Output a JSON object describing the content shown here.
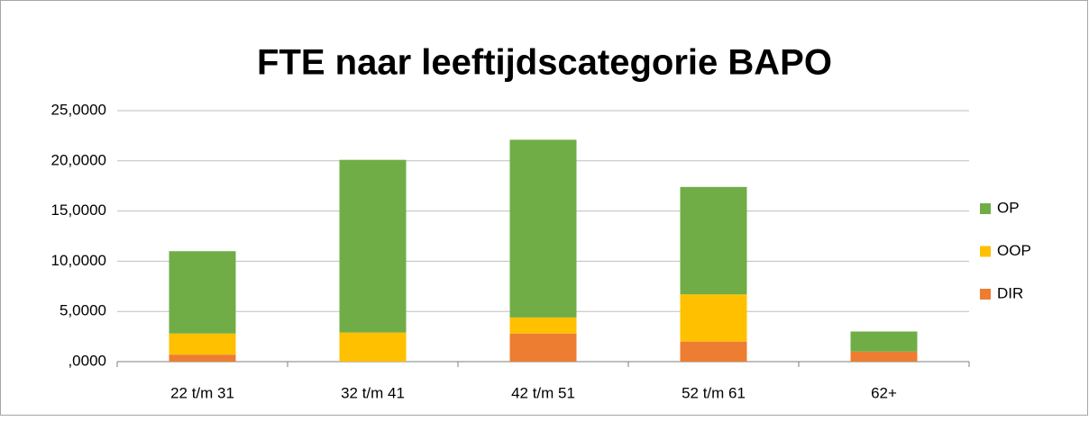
{
  "chart_data": {
    "type": "bar",
    "stacked": true,
    "title": "FTE naar leeftijdscategorie BAPO",
    "categories": [
      "22 t/m 31",
      "32 t/m 41",
      "42 t/m 51",
      "52 t/m 61",
      "62+"
    ],
    "series": [
      {
        "name": "DIR",
        "color": "#ed7d31",
        "values": [
          0.7,
          0,
          2.8,
          2.0,
          1.0
        ]
      },
      {
        "name": "OOP",
        "color": "#ffc000",
        "values": [
          2.1,
          2.9,
          1.6,
          4.7,
          0
        ]
      },
      {
        "name": "OP",
        "color": "#70ad47",
        "values": [
          8.2,
          17.2,
          17.7,
          10.7,
          2.0
        ]
      }
    ],
    "ylim": [
      0,
      25
    ],
    "yticks": [
      {
        "value": 0,
        "label": ",0000"
      },
      {
        "value": 5,
        "label": "5,0000"
      },
      {
        "value": 10,
        "label": "10,0000"
      },
      {
        "value": 15,
        "label": "15,0000"
      },
      {
        "value": 20,
        "label": "20,0000"
      },
      {
        "value": 25,
        "label": "25,0000"
      }
    ],
    "grid": true,
    "legend": "right"
  }
}
